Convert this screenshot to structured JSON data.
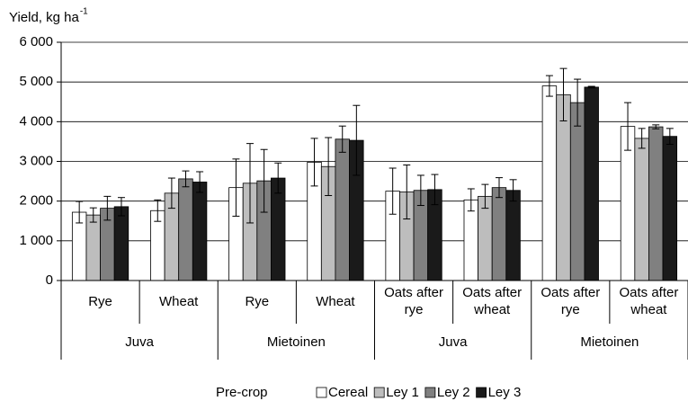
{
  "chart_data": {
    "type": "bar",
    "y_label": "Yield, kg ha",
    "y_label_sup": "-1",
    "categories": [
      "Rye",
      "Wheat",
      "Rye",
      "Wheat",
      "Oats after rye",
      "Oats after wheat",
      "Oats after rye",
      "Oats after wheat"
    ],
    "groups": [
      "Juva",
      "Mietoinen",
      "Juva",
      "Mietoinen"
    ],
    "legend_title": "Pre-crop",
    "ylim": [
      0,
      6000
    ],
    "yticks": [
      0,
      {
        "value": 1000,
        "label": "1 000"
      },
      {
        "value": 2000,
        "label": "2 000"
      },
      {
        "value": 3000,
        "label": "3 000"
      },
      {
        "value": 4000,
        "label": "4 000"
      },
      {
        "value": 5000,
        "label": "5 000"
      },
      {
        "value": 6000,
        "label": "6 000"
      }
    ],
    "grid": true,
    "series": [
      {
        "name": "Cereal",
        "color": "#ffffff",
        "values": [
          1720,
          1760,
          2340,
          2980,
          2250,
          2030,
          4900,
          3880
        ],
        "errors": [
          270,
          270,
          720,
          600,
          580,
          280,
          260,
          600
        ]
      },
      {
        "name": "Ley 1",
        "color": "#bdbdbd",
        "values": [
          1650,
          2200,
          2450,
          2870,
          2230,
          2120,
          4680,
          3580
        ],
        "errors": [
          180,
          380,
          1000,
          730,
          680,
          300,
          660,
          250
        ]
      },
      {
        "name": "Ley 2",
        "color": "#808080",
        "values": [
          1820,
          2560,
          2510,
          3560,
          2270,
          2340,
          4480,
          3870
        ],
        "errors": [
          300,
          200,
          790,
          330,
          380,
          250,
          590,
          50
        ]
      },
      {
        "name": "Ley 3",
        "color": "#1a1a1a",
        "values": [
          1860,
          2480,
          2580,
          3530,
          2290,
          2270,
          4870,
          3630
        ],
        "errors": [
          230,
          260,
          380,
          880,
          380,
          270,
          20,
          200
        ]
      }
    ]
  }
}
